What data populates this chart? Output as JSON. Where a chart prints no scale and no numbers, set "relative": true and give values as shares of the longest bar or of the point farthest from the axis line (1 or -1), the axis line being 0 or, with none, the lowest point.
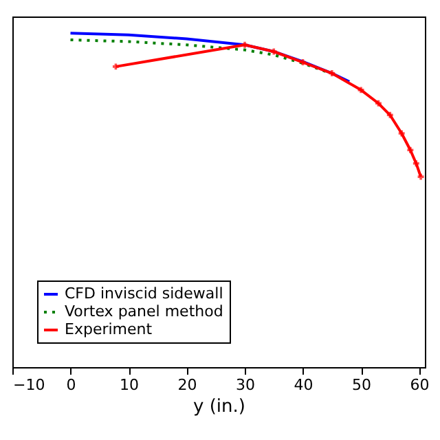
{
  "chart_data": {
    "type": "line",
    "relative": true,
    "xlabel": "y (in.)",
    "xlim": [
      -10,
      61
    ],
    "xticks": [
      -10,
      0,
      10,
      20,
      30,
      40,
      50,
      60
    ],
    "grid": false,
    "legend": "bottom left",
    "series": [
      {
        "name": "CFD inviscid sidewall",
        "color": "#0000ff",
        "line_style": "solid",
        "marker": "none",
        "x": [
          0,
          10,
          20,
          30,
          35,
          40,
          45,
          48
        ],
        "values": [
          1.0,
          0.995,
          0.983,
          0.965,
          0.945,
          0.915,
          0.88,
          0.855
        ]
      },
      {
        "name": "Vortex panel method",
        "color": "#007f00",
        "line_style": "dotted",
        "marker": "none",
        "x": [
          0,
          10,
          20,
          30,
          35,
          40,
          44
        ],
        "values": [
          0.98,
          0.975,
          0.965,
          0.95,
          0.935,
          0.91,
          0.885
        ]
      },
      {
        "name": "Experiment",
        "color": "#ff0000",
        "line_style": "solid",
        "marker": "cross",
        "x": [
          7.8,
          30,
          35,
          40,
          45,
          50,
          53,
          55,
          57,
          58.5,
          59.5,
          60.3
        ],
        "values": [
          0.9,
          0.965,
          0.945,
          0.913,
          0.88,
          0.83,
          0.79,
          0.755,
          0.7,
          0.65,
          0.61,
          0.57
        ]
      }
    ]
  }
}
